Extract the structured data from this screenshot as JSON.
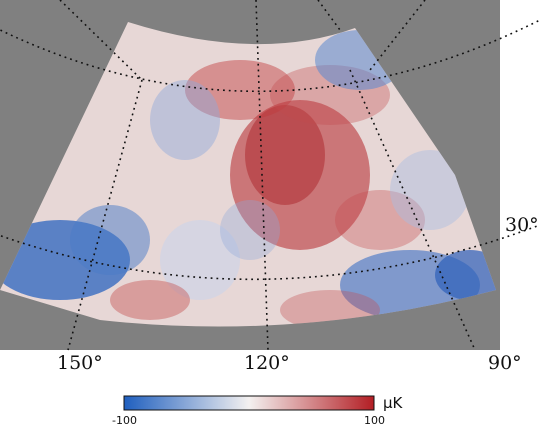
{
  "map": {
    "background_color": "#808080",
    "grid_color": "#111111",
    "colormap": [
      "#1f5fbf",
      "#f4f1f0",
      "#b31e24"
    ],
    "longitude_labels": [
      "150°",
      "120°",
      "90°"
    ],
    "latitude_labels": [
      "30°"
    ]
  },
  "colorbar": {
    "min_label": "-100",
    "max_label": "100",
    "unit": "μK",
    "range": [
      -100,
      100
    ]
  }
}
